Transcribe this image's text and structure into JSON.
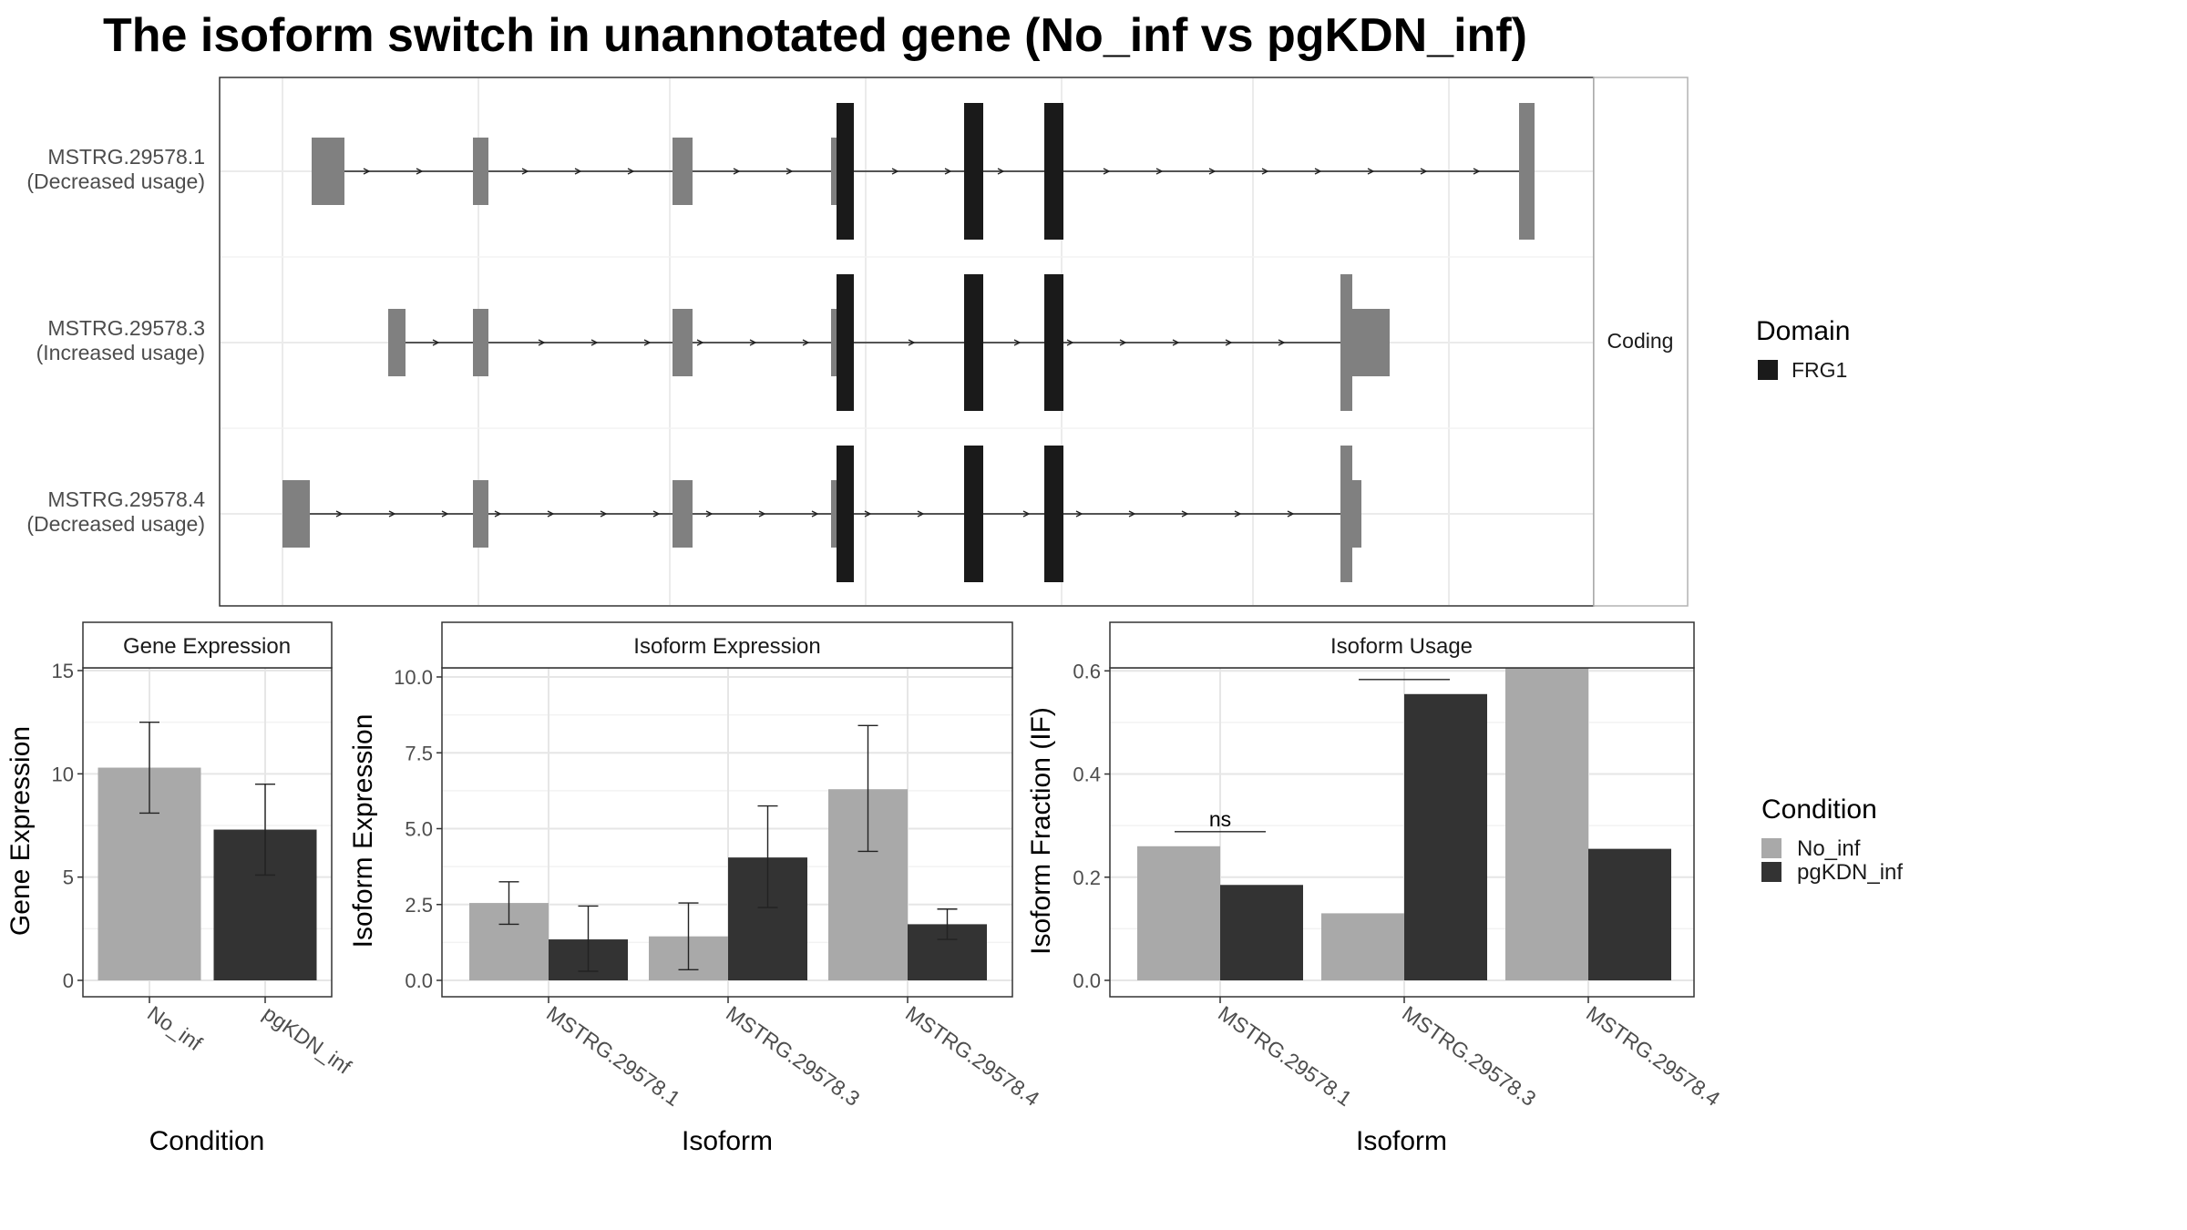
{
  "title": "The isoform switch in unannotated gene (No_inf vs pgKDN_inf)",
  "colors": {
    "no_inf": "#a9a9a9",
    "pgkdn_inf": "#333333",
    "utr": "#808080",
    "cds": "#1a1a1a"
  },
  "structure": {
    "strip_label": "Coding",
    "isoforms": [
      {
        "id": "MSTRG.29578.1",
        "note": "(Decreased usage)"
      },
      {
        "id": "MSTRG.29578.3",
        "note": "(Increased usage)"
      },
      {
        "id": "MSTRG.29578.4",
        "note": "(Decreased usage)"
      }
    ],
    "legend": {
      "title": "Domain",
      "items": [
        {
          "label": "FRG1",
          "color": "#1a1a1a"
        }
      ]
    }
  },
  "condition_legend": {
    "title": "Condition",
    "items": [
      {
        "label": "No_inf",
        "color": "#a9a9a9"
      },
      {
        "label": "pgKDN_inf",
        "color": "#333333"
      }
    ]
  },
  "chart_data": [
    {
      "type": "bar",
      "panel_title": "Gene Expression",
      "xlabel": "Condition",
      "ylabel": "Gene Expression",
      "ylim": [
        0,
        15
      ],
      "yticks": [
        "0",
        "5",
        "10",
        "15"
      ],
      "categories": [
        "No_inf",
        "pgKDN_inf"
      ],
      "values": [
        10.3,
        7.3
      ],
      "error": [
        [
          8.1,
          12.5
        ],
        [
          5.1,
          9.5
        ]
      ]
    },
    {
      "type": "bar",
      "panel_title": "Isoform Expression",
      "xlabel": "Isoform",
      "ylabel": "Isoform Expression",
      "ylim": [
        0,
        10
      ],
      "yticks": [
        "0.0",
        "2.5",
        "5.0",
        "7.5",
        "10.0"
      ],
      "categories": [
        "MSTRG.29578.1",
        "MSTRG.29578.3",
        "MSTRG.29578.4"
      ],
      "series": [
        {
          "name": "No_inf",
          "values": [
            2.55,
            1.45,
            6.3
          ],
          "error": [
            [
              1.85,
              3.25
            ],
            [
              0.35,
              2.55
            ],
            [
              4.25,
              8.4
            ]
          ]
        },
        {
          "name": "pgKDN_inf",
          "values": [
            1.35,
            4.05,
            1.85
          ],
          "error": [
            [
              0.3,
              2.45
            ],
            [
              2.4,
              5.75
            ],
            [
              1.35,
              2.35
            ]
          ]
        }
      ]
    },
    {
      "type": "bar",
      "panel_title": "Isoform Usage",
      "xlabel": "Isoform",
      "ylabel": "Isoform Fraction (IF)",
      "ylim": [
        0,
        0.65
      ],
      "yticks": [
        "0.0",
        "0.2",
        "0.4",
        "0.6"
      ],
      "categories": [
        "MSTRG.29578.1",
        "MSTRG.29578.3",
        "MSTRG.29578.4"
      ],
      "series": [
        {
          "name": "No_inf",
          "values": [
            0.26,
            0.13,
            0.605
          ]
        },
        {
          "name": "pgKDN_inf",
          "values": [
            0.185,
            0.555,
            0.255
          ]
        }
      ],
      "significance": [
        "ns",
        "*",
        "*"
      ]
    }
  ]
}
